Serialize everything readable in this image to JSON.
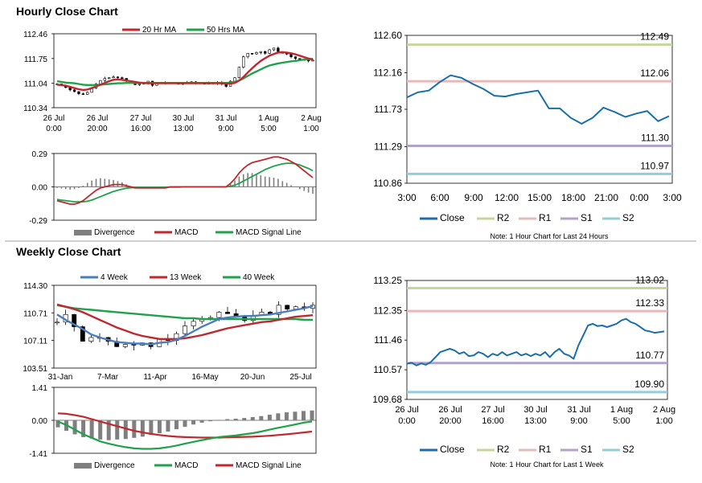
{
  "sections": {
    "hourly_title": "Hourly Close Chart",
    "weekly_title": "Weekly Close Chart"
  },
  "colors": {
    "ma_red": "#c0282d",
    "ma_green": "#1fa24a",
    "ma_blue": "#4a7ebf",
    "close_blue": "#1a6fa8",
    "r2": "#c3d69b",
    "r1": "#e6b9b8",
    "s1": "#b3a2c7",
    "s2": "#93cddd",
    "divergence": "#7f7f7f",
    "candle": "#000000"
  },
  "chart_data": [
    {
      "id": "hourly_price",
      "type": "candlestick",
      "title": "Hourly Close Chart",
      "legend": [
        "20 Hr MA",
        "50 Hrs MA"
      ],
      "x_ticks": [
        [
          "26 Jul",
          "0:00"
        ],
        [
          "26 Jul",
          "20:00"
        ],
        [
          "27 Jul",
          "16:00"
        ],
        [
          "30 Jul",
          "13:00"
        ],
        [
          "31 Jul",
          "9:00"
        ],
        [
          "1 Aug",
          "5:00"
        ],
        [
          "2 Aug",
          "1:00"
        ]
      ],
      "y_ticks": [
        "112.46",
        "111.75",
        "111.04",
        "110.34"
      ],
      "ylim": [
        110.34,
        112.46
      ],
      "close": [
        111.02,
        110.98,
        110.92,
        110.85,
        110.8,
        110.74,
        110.72,
        110.78,
        110.9,
        111.02,
        111.12,
        111.18,
        111.2,
        111.22,
        111.2,
        111.18,
        111.1,
        111.05,
        111.0,
        111.02,
        111.05,
        111.1,
        110.98,
        111.05,
        111.04,
        111.06,
        111.05,
        111.04,
        111.02,
        111.04,
        111.06,
        111.08,
        111.05,
        111.04,
        111.02,
        111.05,
        111.04,
        111.06,
        111.02,
        110.95,
        111.1,
        111.2,
        111.5,
        111.8,
        111.9,
        111.88,
        111.92,
        111.95,
        111.9,
        112.0,
        112.05,
        111.95,
        111.9,
        111.88,
        111.8,
        111.75,
        111.7,
        111.72,
        111.68,
        111.7
      ],
      "ma20": [
        111.0,
        110.99,
        110.97,
        110.94,
        110.9,
        110.87,
        110.85,
        110.86,
        110.9,
        110.95,
        111.0,
        111.05,
        111.1,
        111.14,
        111.15,
        111.14,
        111.12,
        111.1,
        111.08,
        111.06,
        111.05,
        111.04,
        111.04,
        111.04,
        111.04,
        111.04,
        111.04,
        111.04,
        111.04,
        111.04,
        111.04,
        111.04,
        111.04,
        111.04,
        111.04,
        111.04,
        111.04,
        111.04,
        111.04,
        111.03,
        111.03,
        111.05,
        111.12,
        111.22,
        111.35,
        111.47,
        111.58,
        111.68,
        111.76,
        111.83,
        111.88,
        111.92,
        111.93,
        111.92,
        111.9,
        111.87,
        111.83,
        111.79,
        111.75,
        111.72
      ],
      "ma50": [
        111.1,
        111.08,
        111.06,
        111.05,
        111.04,
        111.02,
        111.0,
        110.99,
        110.99,
        110.99,
        111.0,
        111.01,
        111.02,
        111.03,
        111.04,
        111.04,
        111.05,
        111.05,
        111.05,
        111.05,
        111.05,
        111.05,
        111.05,
        111.05,
        111.05,
        111.05,
        111.05,
        111.05,
        111.05,
        111.05,
        111.05,
        111.05,
        111.05,
        111.05,
        111.05,
        111.05,
        111.05,
        111.05,
        111.05,
        111.05,
        111.06,
        111.08,
        111.12,
        111.18,
        111.25,
        111.32,
        111.38,
        111.44,
        111.5,
        111.55,
        111.58,
        111.61,
        111.63,
        111.65,
        111.67,
        111.68,
        111.7,
        111.72,
        111.73,
        111.74
      ]
    },
    {
      "id": "hourly_macd",
      "type": "macd",
      "legend": [
        "Divergence",
        "MACD",
        "MACD Signal Line"
      ],
      "y_ticks": [
        "0.29",
        "0.00",
        "-0.29"
      ],
      "ylim": [
        -0.29,
        0.29
      ],
      "macd": [
        -0.12,
        -0.13,
        -0.14,
        -0.15,
        -0.15,
        -0.14,
        -0.12,
        -0.09,
        -0.06,
        -0.03,
        -0.01,
        0.0,
        0.01,
        0.02,
        0.02,
        0.02,
        0.01,
        0.0,
        -0.01,
        -0.01,
        -0.01,
        -0.01,
        -0.01,
        -0.01,
        -0.01,
        -0.01,
        0.0,
        0.0,
        0.0,
        0.0,
        0.0,
        0.0,
        0.0,
        0.0,
        0.0,
        0.0,
        0.0,
        0.0,
        0.0,
        0.0,
        0.03,
        0.07,
        0.12,
        0.16,
        0.19,
        0.21,
        0.22,
        0.23,
        0.24,
        0.25,
        0.26,
        0.26,
        0.25,
        0.24,
        0.22,
        0.2,
        0.17,
        0.14,
        0.11,
        0.08
      ],
      "signal": [
        -0.11,
        -0.115,
        -0.12,
        -0.125,
        -0.13,
        -0.13,
        -0.13,
        -0.125,
        -0.115,
        -0.1,
        -0.085,
        -0.07,
        -0.055,
        -0.04,
        -0.03,
        -0.02,
        -0.012,
        -0.008,
        -0.006,
        -0.006,
        -0.006,
        -0.006,
        -0.006,
        -0.006,
        -0.005,
        -0.004,
        -0.003,
        -0.002,
        -0.002,
        -0.001,
        0.0,
        0.0,
        0.0,
        0.0,
        0.0,
        0.0,
        0.0,
        0.0,
        0.0,
        0.0,
        0.005,
        0.015,
        0.03,
        0.05,
        0.07,
        0.09,
        0.11,
        0.13,
        0.15,
        0.165,
        0.18,
        0.19,
        0.2,
        0.205,
        0.205,
        0.2,
        0.19,
        0.175,
        0.16,
        0.14
      ]
    },
    {
      "id": "hourly_pivots",
      "type": "line",
      "legend": [
        "Close",
        "R2",
        "R1",
        "S1",
        "S2"
      ],
      "note": "Note: 1 Hour Chart for Last 24 Hours",
      "x_ticks": [
        "3:00",
        "6:00",
        "9:00",
        "12:00",
        "15:00",
        "18:00",
        "21:00",
        "0:00",
        "3:00"
      ],
      "y_ticks": [
        "112.60",
        "112.16",
        "111.73",
        "111.29",
        "110.86"
      ],
      "ylim": [
        110.86,
        112.6
      ],
      "levels": {
        "R2": 112.49,
        "R1": 112.06,
        "S1": 111.3,
        "S2": 110.97
      },
      "level_labels": {
        "R2": "112.49",
        "R1": "112.06",
        "S1": "111.30",
        "S2": "110.97"
      },
      "close": [
        111.87,
        111.93,
        111.95,
        112.05,
        112.13,
        112.1,
        112.03,
        111.97,
        111.89,
        111.88,
        111.91,
        111.93,
        111.95,
        111.74,
        111.74,
        111.63,
        111.56,
        111.63,
        111.75,
        111.7,
        111.64,
        111.68,
        111.71,
        111.59,
        111.65
      ]
    },
    {
      "id": "weekly_price",
      "type": "candlestick",
      "title": "Weekly Close Chart",
      "legend": [
        "4 Week",
        "13 Week",
        "40 Week"
      ],
      "x_ticks": [
        "31-Jan",
        "7-Mar",
        "11-Apr",
        "16-May",
        "20-Jun",
        "25-Jul"
      ],
      "y_ticks": [
        "114.30",
        "110.71",
        "107.11",
        "103.51"
      ],
      "ylim": [
        103.51,
        114.3
      ],
      "close": [
        109.5,
        110.5,
        108.9,
        107.0,
        107.5,
        107.5,
        107.0,
        106.3,
        106.6,
        106.5,
        106.8,
        106.3,
        107.3,
        107.1,
        108.0,
        109.0,
        109.6,
        109.9,
        110.1,
        110.8,
        110.6,
        110.2,
        109.7,
        110.4,
        110.8,
        110.5,
        111.7,
        111.2,
        111.5,
        111.3,
        111.7
      ],
      "ma4": [
        110.5,
        109.8,
        109.2,
        108.6,
        107.9,
        107.5,
        107.2,
        106.9,
        106.8,
        106.7,
        106.7,
        106.6,
        106.8,
        106.9,
        107.2,
        107.7,
        108.3,
        108.9,
        109.4,
        109.9,
        110.1,
        110.2,
        110.3,
        110.3,
        110.4,
        110.5,
        110.7,
        110.9,
        111.1,
        111.3,
        111.6
      ],
      "ma13": [
        111.8,
        111.5,
        111.2,
        110.8,
        110.3,
        109.8,
        109.3,
        108.8,
        108.4,
        108.0,
        107.7,
        107.5,
        107.3,
        107.3,
        107.3,
        107.4,
        107.6,
        107.8,
        108.1,
        108.4,
        108.7,
        108.9,
        109.1,
        109.3,
        109.5,
        109.6,
        109.8,
        110.0,
        110.2,
        110.3,
        110.4
      ],
      "ma40": [
        111.7,
        111.5,
        111.3,
        111.2,
        111.1,
        111.0,
        110.9,
        110.8,
        110.7,
        110.6,
        110.5,
        110.4,
        110.3,
        110.2,
        110.1,
        110.0,
        110.0,
        109.9,
        109.9,
        109.9,
        109.9,
        109.9,
        109.9,
        109.9,
        109.9,
        109.9,
        109.9,
        109.9,
        109.9,
        109.8,
        109.8
      ]
    },
    {
      "id": "weekly_macd",
      "type": "macd",
      "legend": [
        "Divergence",
        "MACD",
        "MACD Signal Line"
      ],
      "y_ticks": [
        "1.41",
        "0.00",
        "-1.41"
      ],
      "ylim": [
        -1.41,
        1.41
      ],
      "macd": [
        -0.05,
        -0.2,
        -0.4,
        -0.6,
        -0.75,
        -0.9,
        -1.0,
        -1.08,
        -1.15,
        -1.2,
        -1.22,
        -1.22,
        -1.2,
        -1.15,
        -1.08,
        -1.0,
        -0.92,
        -0.85,
        -0.78,
        -0.72,
        -0.68,
        -0.65,
        -0.6,
        -0.55,
        -0.48,
        -0.4,
        -0.32,
        -0.25,
        -0.18,
        -0.1,
        -0.05
      ],
      "signal": [
        0.3,
        0.28,
        0.22,
        0.15,
        0.05,
        -0.05,
        -0.15,
        -0.25,
        -0.35,
        -0.45,
        -0.52,
        -0.58,
        -0.63,
        -0.67,
        -0.7,
        -0.72,
        -0.73,
        -0.74,
        -0.74,
        -0.74,
        -0.73,
        -0.72,
        -0.71,
        -0.7,
        -0.68,
        -0.66,
        -0.63,
        -0.6,
        -0.56,
        -0.52,
        -0.48
      ],
      "divergence": [
        -0.3,
        -0.45,
        -0.6,
        -0.72,
        -0.78,
        -0.82,
        -0.85,
        -0.82,
        -0.8,
        -0.75,
        -0.7,
        -0.62,
        -0.55,
        -0.48,
        -0.38,
        -0.28,
        -0.18,
        -0.1,
        -0.04,
        0.02,
        0.05,
        0.07,
        0.1,
        0.14,
        0.18,
        0.24,
        0.3,
        0.34,
        0.37,
        0.4,
        0.42
      ]
    },
    {
      "id": "weekly_pivots",
      "type": "line",
      "legend": [
        "Close",
        "R2",
        "R1",
        "S1",
        "S2"
      ],
      "note": "Note: 1 Hour Chart for Last 1 Week",
      "x_ticks": [
        [
          "26 Jul",
          "0:00"
        ],
        [
          "26 Jul",
          "20:00"
        ],
        [
          "27 Jul",
          "16:00"
        ],
        [
          "30 Jul",
          "13:00"
        ],
        [
          "31 Jul",
          "9:00"
        ],
        [
          "1 Aug",
          "5:00"
        ],
        [
          "2 Aug",
          "1:00"
        ]
      ],
      "y_ticks": [
        "113.25",
        "112.35",
        "111.46",
        "110.57",
        "109.68"
      ],
      "ylim": [
        109.68,
        113.25
      ],
      "levels": {
        "R2": 113.02,
        "R1": 112.33,
        "S1": 110.77,
        "S2": 109.9
      },
      "level_labels": {
        "R2": "113.02",
        "R1": "112.33",
        "S1": "110.77",
        "S2": "109.90"
      },
      "close": [
        110.75,
        110.78,
        110.7,
        110.76,
        110.72,
        110.8,
        110.95,
        111.1,
        111.15,
        111.2,
        111.15,
        111.05,
        111.1,
        110.98,
        111.0,
        111.1,
        111.05,
        110.95,
        111.05,
        111.0,
        111.1,
        111.0,
        111.05,
        111.1,
        111.0,
        111.05,
        110.98,
        111.05,
        111.0,
        111.1,
        110.95,
        111.1,
        111.2,
        111.05,
        111.0,
        110.9,
        111.3,
        111.6,
        111.9,
        111.95,
        111.88,
        111.9,
        111.85,
        111.9,
        111.95,
        112.05,
        112.1,
        112.0,
        111.95,
        111.85,
        111.75,
        111.72,
        111.68,
        111.7,
        111.72
      ]
    }
  ]
}
